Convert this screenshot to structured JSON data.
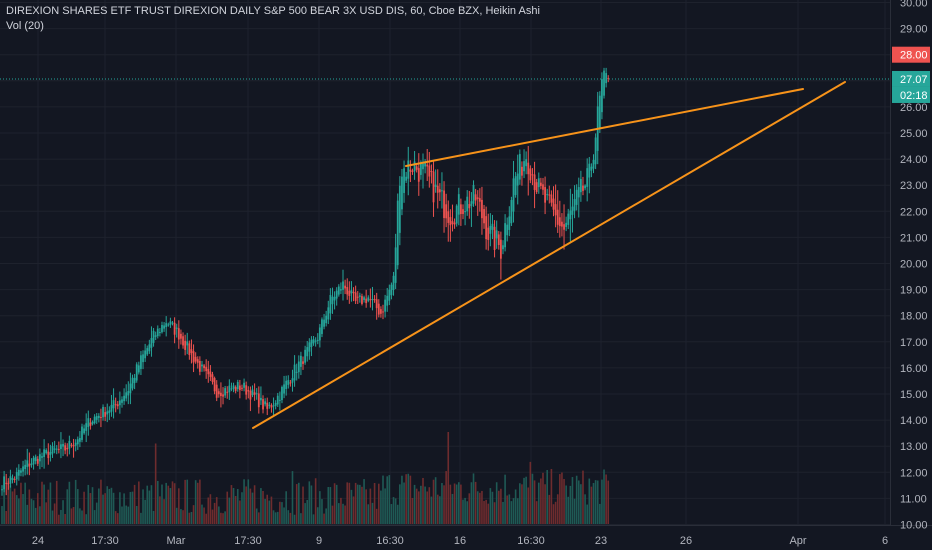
{
  "header": {
    "title": "DIREXION SHARES ETF TRUST DIREXION DAILY S&P 500 BEAR 3X USD DIS, 60, Cboe BZX, Heikin Ashi",
    "volume_label": "Vol (20)"
  },
  "colors": {
    "background": "#131722",
    "grid": "#1e222d",
    "up": "#26a69a",
    "down": "#ef5350",
    "volume_up": "#1f5a55",
    "volume_down": "#6e2c2e",
    "trendline": "#f7931a",
    "price_line": "#26a69a",
    "axis_text": "#b2b5be"
  },
  "chart_data": {
    "type": "candlestick",
    "chart_style": "Heikin Ashi",
    "interval": "60",
    "exchange": "Cboe BZX",
    "y_axis": {
      "position": "right",
      "range": [
        9.9,
        30.1
      ],
      "tick_labels": [
        "10.00",
        "11.00",
        "12.00",
        "13.00",
        "14.00",
        "15.00",
        "16.00",
        "17.00",
        "18.00",
        "19.00",
        "20.00",
        "21.00",
        "22.00",
        "23.00",
        "24.00",
        "25.00",
        "26.00",
        "27.00",
        "28.00",
        "29.00",
        "30.00"
      ]
    },
    "x_axis": {
      "tick_labels": [
        "24",
        "17:30",
        "Mar",
        "17:30",
        "9",
        "16:30",
        "16",
        "16:30",
        "23",
        "26",
        "Apr",
        "6"
      ]
    },
    "price_labels": [
      {
        "value": 28.0,
        "text": "28.00",
        "color": "#ef5350"
      },
      {
        "value": 27.07,
        "text": "27.07",
        "color": "#26a69a"
      },
      {
        "text": "02:18",
        "color": "#26a69a"
      }
    ],
    "last_price": 27.07,
    "trendlines": [
      {
        "name": "upper",
        "from": {
          "bar": 0.53,
          "price": 23.7
        },
        "to": {
          "bar": 1.1,
          "price": 26.6
        }
      },
      {
        "name": "lower",
        "from": {
          "bar": 0.3,
          "price": 13.7
        },
        "to": {
          "bar": 1.2,
          "price": 26.9
        }
      }
    ],
    "volume_scale_max": 4.3,
    "close_path": [
      [
        0,
        11.6
      ],
      [
        6,
        11.8
      ],
      [
        12,
        12.3
      ],
      [
        18,
        12.6
      ],
      [
        24,
        12.8
      ],
      [
        30,
        12.9
      ],
      [
        36,
        13.3
      ],
      [
        42,
        14.0
      ],
      [
        48,
        14.3
      ],
      [
        54,
        14.6
      ],
      [
        60,
        15.2
      ],
      [
        66,
        16.3
      ],
      [
        72,
        17.2
      ],
      [
        78,
        17.8
      ],
      [
        84,
        17.3
      ],
      [
        90,
        16.5
      ],
      [
        96,
        15.8
      ],
      [
        102,
        15.1
      ],
      [
        108,
        15.2
      ],
      [
        114,
        15.3
      ],
      [
        120,
        14.9
      ],
      [
        126,
        14.4
      ],
      [
        132,
        15.0
      ],
      [
        138,
        15.8
      ],
      [
        144,
        16.5
      ],
      [
        150,
        17.2
      ],
      [
        156,
        18.6
      ],
      [
        162,
        19.2
      ],
      [
        168,
        18.5
      ],
      [
        174,
        18.7
      ],
      [
        180,
        18.1
      ],
      [
        186,
        19.4
      ],
      [
        189,
        23.5
      ],
      [
        195,
        23.8
      ],
      [
        201,
        23.4
      ],
      [
        207,
        22.6
      ],
      [
        213,
        21.9
      ],
      [
        219,
        22.3
      ],
      [
        225,
        22.5
      ],
      [
        231,
        21.2
      ],
      [
        237,
        20.6
      ],
      [
        243,
        23.1
      ],
      [
        249,
        24.2
      ],
      [
        255,
        22.8
      ],
      [
        261,
        22.0
      ],
      [
        267,
        21.3
      ],
      [
        273,
        22.4
      ],
      [
        279,
        23.3
      ],
      [
        282,
        25.0
      ],
      [
        285,
        26.8
      ],
      [
        288,
        27.07
      ]
    ],
    "volume_spikes": [
      [
        73,
        3.5
      ],
      [
        138,
        2.3
      ],
      [
        212,
        4.0
      ],
      [
        251,
        2.7
      ]
    ]
  }
}
